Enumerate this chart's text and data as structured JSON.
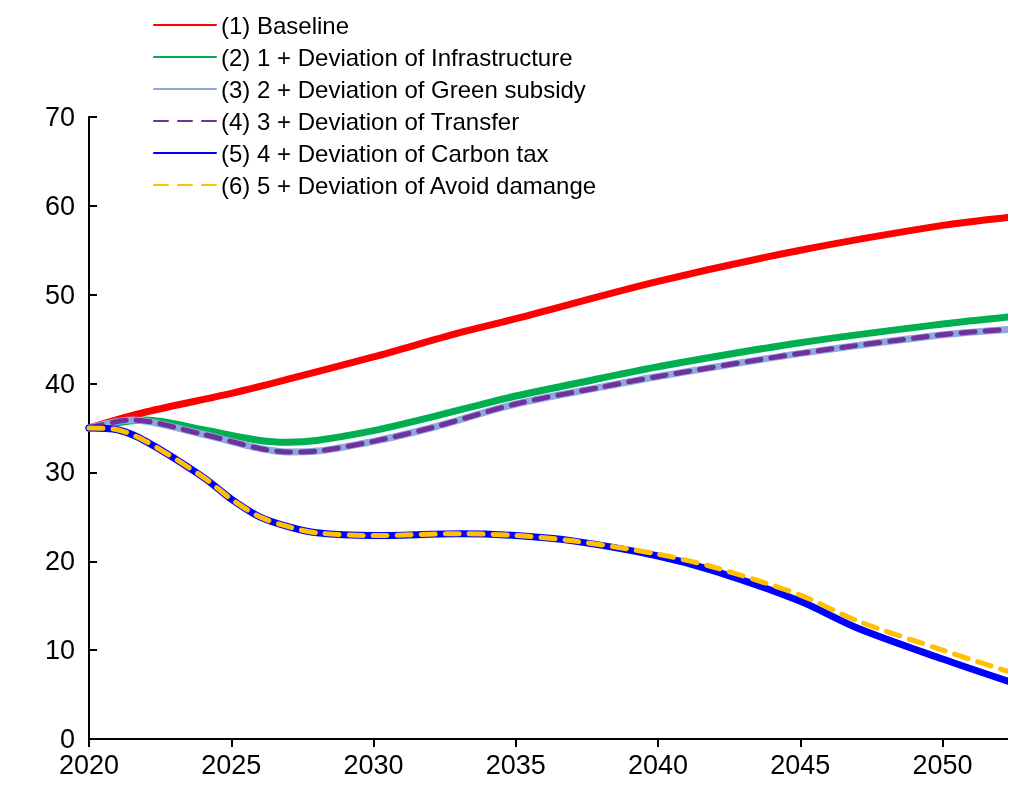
{
  "chart_data": {
    "type": "line",
    "xlim": [
      2020,
      2052.3
    ],
    "xticks": [
      2020,
      2025,
      2030,
      2035,
      2040,
      2045,
      2050
    ],
    "ylim": [
      0,
      70
    ],
    "yticks": [
      0,
      10,
      20,
      30,
      40,
      50,
      60,
      70
    ],
    "grid": false,
    "legend": "top left",
    "marker": "none",
    "series": [
      {
        "name": "(1) Baseline",
        "color": "#ff0000",
        "line_style": "solid",
        "x": [
          2020,
          2022,
          2025,
          2027,
          2030,
          2033,
          2035,
          2040,
          2045,
          2050,
          2052.3
        ],
        "values": [
          35,
          36.8,
          38.9,
          40.5,
          43,
          45.7,
          47.3,
          51.5,
          55,
          57.8,
          58.7
        ]
      },
      {
        "name": "(2) 1 + Deviation of Infrastructure",
        "color": "#00b050",
        "line_style": "solid",
        "x": [
          2020,
          2022,
          2024,
          2026,
          2027,
          2028,
          2030,
          2032,
          2035,
          2038,
          2040,
          2045,
          2050,
          2052.3
        ],
        "values": [
          35,
          35.9,
          34.8,
          33.6,
          33.4,
          33.6,
          34.7,
          36.2,
          38.6,
          40.6,
          41.9,
          44.6,
          46.7,
          47.5
        ]
      },
      {
        "name": "(3) 2 + Deviation of Green subsidy",
        "color": "#8eaadb",
        "line_style": "solid",
        "x": [
          2020,
          2021.5,
          2024,
          2026,
          2027,
          2028,
          2030,
          2032,
          2035,
          2038,
          2040,
          2045,
          2050,
          2052.3
        ],
        "values": [
          35,
          35.9,
          34.3,
          32.7,
          32.3,
          32.4,
          33.5,
          35,
          37.7,
          39.6,
          40.8,
          43.4,
          45.5,
          46.1
        ]
      },
      {
        "name": "(4) 3 + Deviation of Transfer",
        "color": "#7030a0",
        "line_style": "dashed",
        "x": [
          2020,
          2021.5,
          2024,
          2026,
          2027,
          2028,
          2030,
          2032,
          2035,
          2038,
          2040,
          2045,
          2050,
          2052.3
        ],
        "values": [
          35,
          35.9,
          34.3,
          32.7,
          32.3,
          32.4,
          33.5,
          35,
          37.7,
          39.6,
          40.8,
          43.4,
          45.5,
          46.1
        ]
      },
      {
        "name": "(5) 4 + Deviation of Carbon tax",
        "color": "#0000ff",
        "line_style": "solid",
        "x": [
          2020,
          2021,
          2022,
          2024,
          2025,
          2026,
          2027,
          2028,
          2030,
          2033,
          2035,
          2037,
          2040,
          2042,
          2045,
          2047,
          2050,
          2052.3
        ],
        "values": [
          35,
          34.8,
          33.5,
          29.5,
          27,
          25,
          23.9,
          23.2,
          22.9,
          23.1,
          22.9,
          22.3,
          20.6,
          18.9,
          15.5,
          12.5,
          9,
          6.5
        ]
      },
      {
        "name": "(6) 5 + Deviation of Avoid damange",
        "color": "#ffc000",
        "line_style": "dashed",
        "x": [
          2020,
          2021,
          2022,
          2024,
          2025,
          2026,
          2027,
          2028,
          2030,
          2033,
          2035,
          2037,
          2040,
          2042,
          2045,
          2047,
          2050,
          2052.3
        ],
        "values": [
          35,
          34.8,
          33.5,
          29.5,
          27,
          25,
          23.9,
          23.2,
          22.9,
          23.1,
          22.9,
          22.3,
          20.8,
          19.3,
          16.2,
          13.3,
          10,
          7.6
        ]
      }
    ]
  }
}
